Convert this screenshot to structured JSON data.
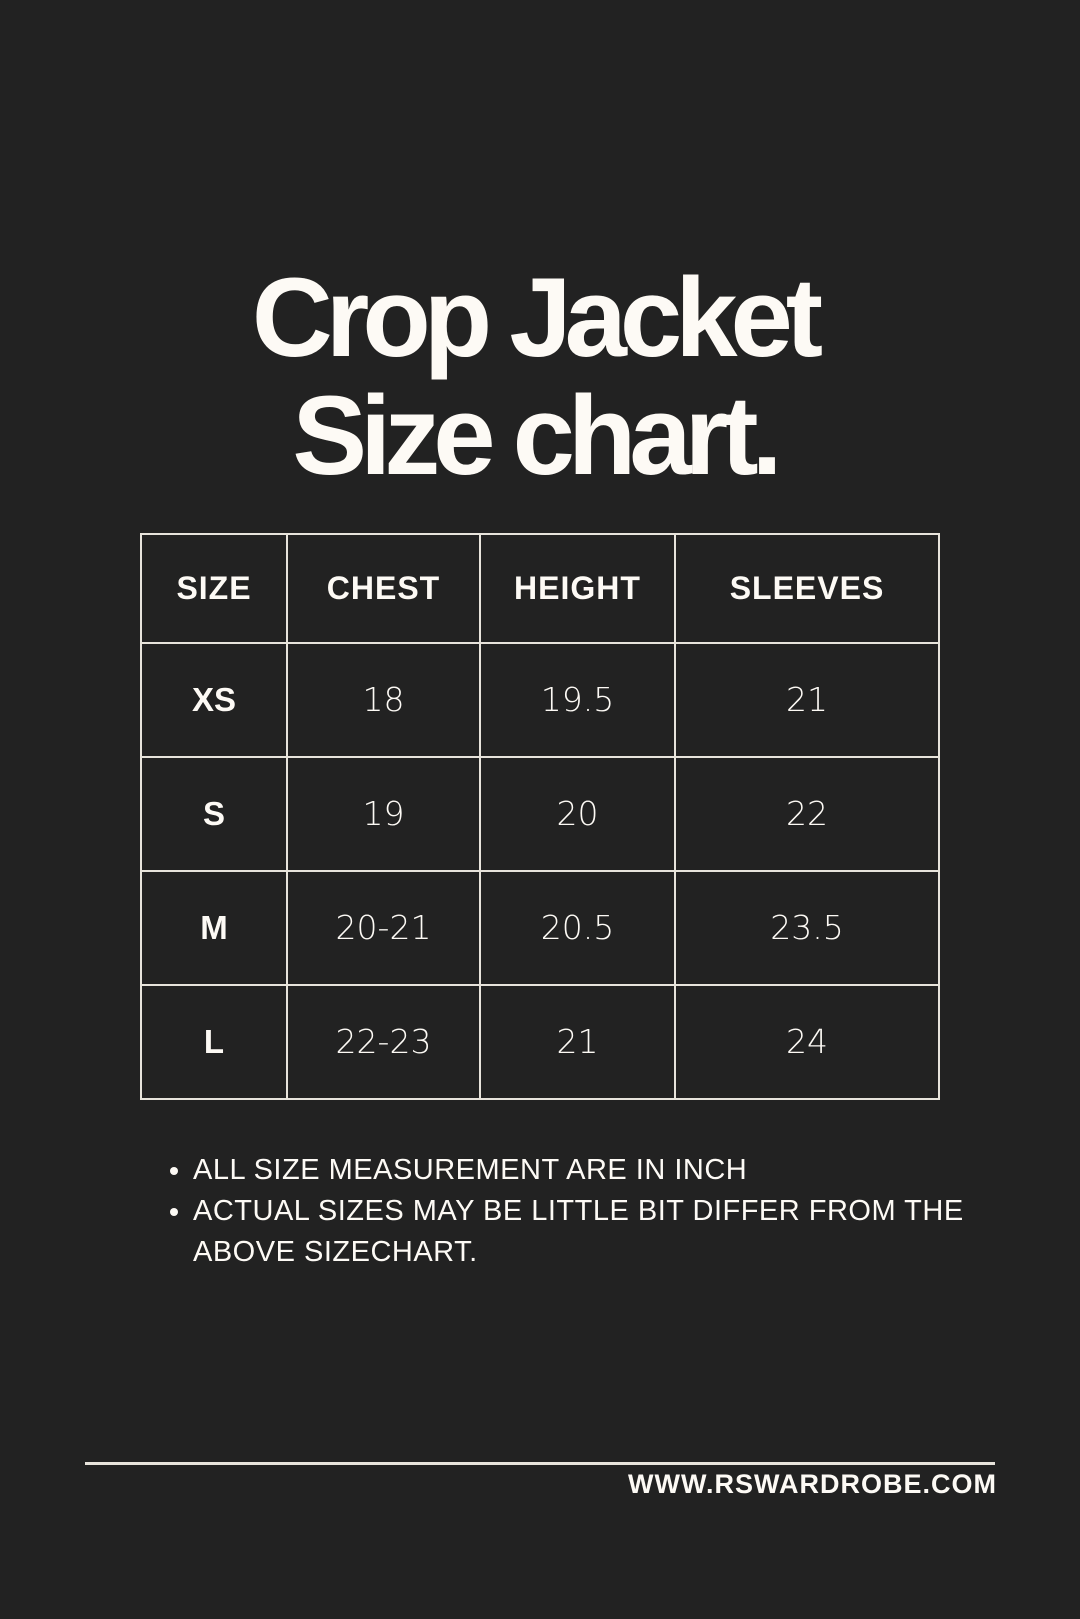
{
  "title": {
    "line1": "Crop Jacket",
    "line2": "Size chart."
  },
  "table": {
    "headers": [
      "SIZE",
      "CHEST",
      "HEIGHT",
      "SLEEVES"
    ],
    "rows": [
      [
        "XS",
        "18",
        "19.5",
        "21"
      ],
      [
        "S",
        "19",
        "20",
        "22"
      ],
      [
        "M",
        "20-21",
        "20.5",
        "23.5"
      ],
      [
        "L",
        "22-23",
        "21",
        "24"
      ]
    ]
  },
  "notes": [
    "ALL SIZE MEASUREMENT ARE IN INCH",
    "ACTUAL SIZES MAY BE LITTLE BIT DIFFER FROM THE ABOVE SIZECHART."
  ],
  "footer": {
    "website": "WWW.RSWARDROBE.COM"
  },
  "colors": {
    "background": "#222222",
    "text": "#fdfaf5"
  }
}
